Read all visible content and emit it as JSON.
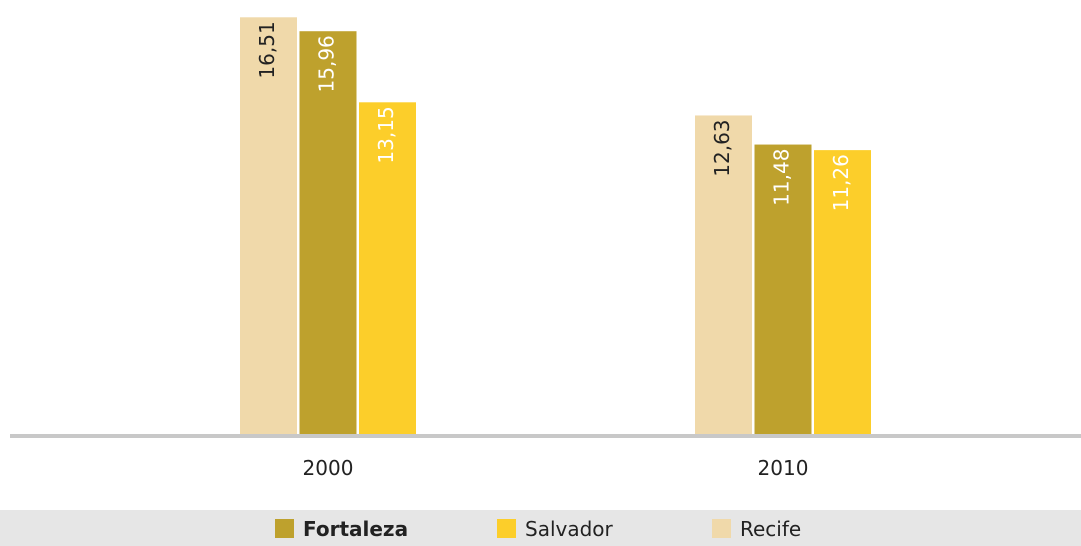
{
  "chart_data": {
    "type": "bar",
    "categories": [
      "2000",
      "2010"
    ],
    "series": [
      {
        "name": "Recife",
        "color": "#f0d9aa",
        "values": [
          16.51,
          12.63
        ],
        "value_labels": [
          "16,51",
          "12,63"
        ]
      },
      {
        "name": "Fortaleza",
        "color": "#bea12d",
        "values": [
          15.96,
          11.48
        ],
        "value_labels": [
          "15,96",
          "11,48"
        ]
      },
      {
        "name": "Salvador",
        "color": "#fcce2a",
        "values": [
          13.15,
          11.26
        ],
        "value_labels": [
          "13,15",
          "11,26"
        ]
      }
    ]
  }
}
